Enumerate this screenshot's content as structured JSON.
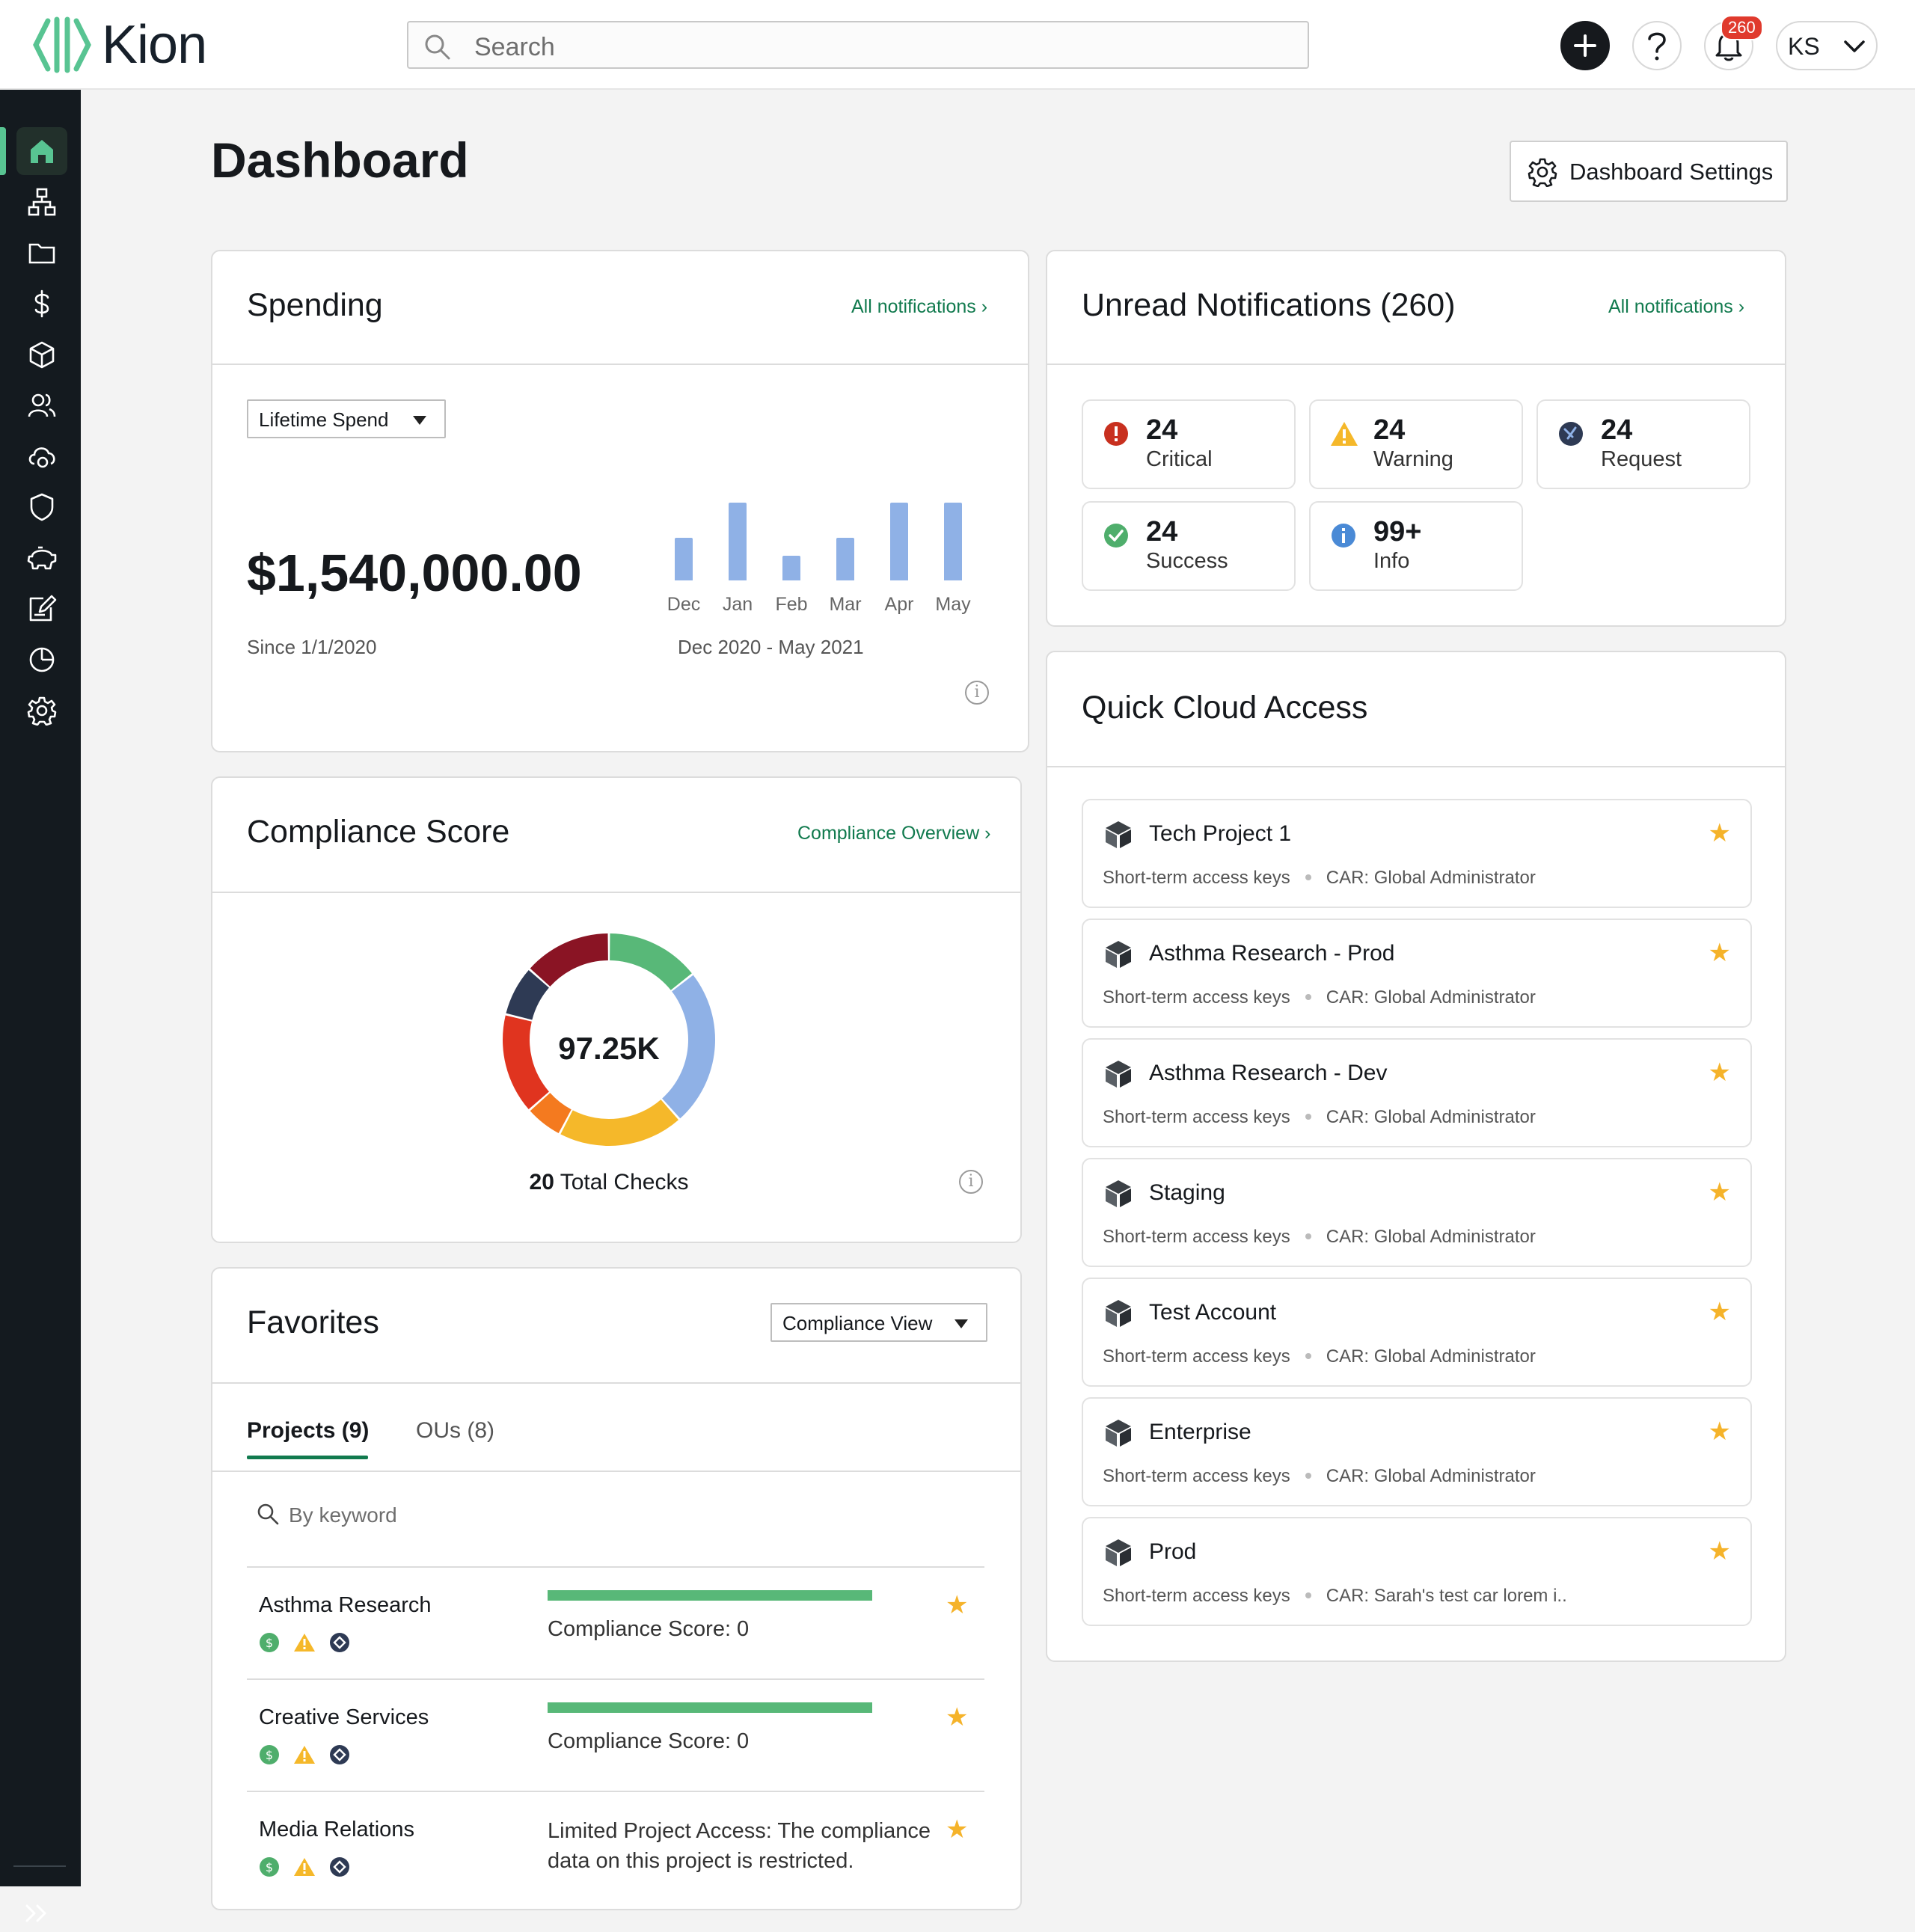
{
  "header": {
    "logo_text": "Kion",
    "search_placeholder": "Search",
    "notification_badge": "260",
    "user_initials": "KS"
  },
  "sidebar": {
    "items": [
      "home",
      "org-chart",
      "folder",
      "spend",
      "project-cube",
      "users",
      "cloud-settings",
      "shield",
      "piggy-bank",
      "edit-note",
      "pie-chart",
      "settings"
    ],
    "active": "home",
    "accent_color": "#58c492"
  },
  "page": {
    "title": "Dashboard",
    "settings_button": "Dashboard Settings"
  },
  "spending": {
    "title": "Spending",
    "link": "All notifications ›",
    "select_value": "Lifetime Spend",
    "amount": "$1,540,000.00",
    "since": "Since 1/1/2020",
    "range": "Dec 2020 - May 2021",
    "chart_data": {
      "type": "bar",
      "categories": [
        "Dec",
        "Jan",
        "Feb",
        "Mar",
        "Apr",
        "May"
      ],
      "values": [
        55,
        100,
        32,
        55,
        100,
        100
      ],
      "title": "",
      "xlabel": "",
      "ylabel": "",
      "color": "#8fb1e6"
    }
  },
  "notifications": {
    "title": "Unread Notifications (260)",
    "link": "All notifications ›",
    "tiles": [
      {
        "count": "24",
        "label": "Critical",
        "icon": "critical-icon"
      },
      {
        "count": "24",
        "label": "Warning",
        "icon": "warning-icon"
      },
      {
        "count": "24",
        "label": "Request",
        "icon": "request-icon"
      },
      {
        "count": "24",
        "label": "Success",
        "icon": "success-icon"
      },
      {
        "count": "99+",
        "label": "Info",
        "icon": "info-icon"
      }
    ]
  },
  "compliance": {
    "title": "Compliance Score",
    "link": "Compliance Overview ›",
    "center_value": "97.25K",
    "total_count": "20",
    "total_label": " Total Checks",
    "chart_data": {
      "type": "pie",
      "slices": [
        {
          "color": "#58b878",
          "value": 15
        },
        {
          "color": "#8fb1e6",
          "value": 25
        },
        {
          "color": "#f5b82a",
          "value": 20
        },
        {
          "color": "#f47a1f",
          "value": 6
        },
        {
          "color": "#e0341f",
          "value": 16
        },
        {
          "color": "#2e3a54",
          "value": 8
        },
        {
          "color": "#8a1424",
          "value": 14
        }
      ]
    }
  },
  "favorites": {
    "title": "Favorites",
    "select_value": "Compliance View",
    "tabs": [
      "Projects (9)",
      "OUs (8)"
    ],
    "search_placeholder": "By keyword",
    "rows": [
      {
        "name": "Asthma Research",
        "score": "Compliance Score: 0"
      },
      {
        "name": "Creative Services",
        "score": "Compliance Score: 0"
      },
      {
        "name": "Media Relations",
        "limited": "Limited Project Access: The compliance data on this project is restricted."
      }
    ]
  },
  "quick_cloud": {
    "title": "Quick Cloud Access",
    "items": [
      {
        "name": "Tech Project 1",
        "keys": "Short-term access keys",
        "car": "CAR: Global Administrator"
      },
      {
        "name": "Asthma Research - Prod",
        "keys": "Short-term access keys",
        "car": "CAR: Global Administrator"
      },
      {
        "name": "Asthma Research - Dev",
        "keys": "Short-term access keys",
        "car": "CAR: Global Administrator"
      },
      {
        "name": "Staging",
        "keys": "Short-term access keys",
        "car": "CAR: Global Administrator"
      },
      {
        "name": "Test Account",
        "keys": "Short-term access keys",
        "car": "CAR: Global Administrator"
      },
      {
        "name": "Enterprise",
        "keys": "Short-term access keys",
        "car": "CAR: Global Administrator"
      },
      {
        "name": "Prod",
        "keys": "Short-term access keys",
        "car": "CAR: Sarah's test car lorem i.."
      }
    ]
  }
}
